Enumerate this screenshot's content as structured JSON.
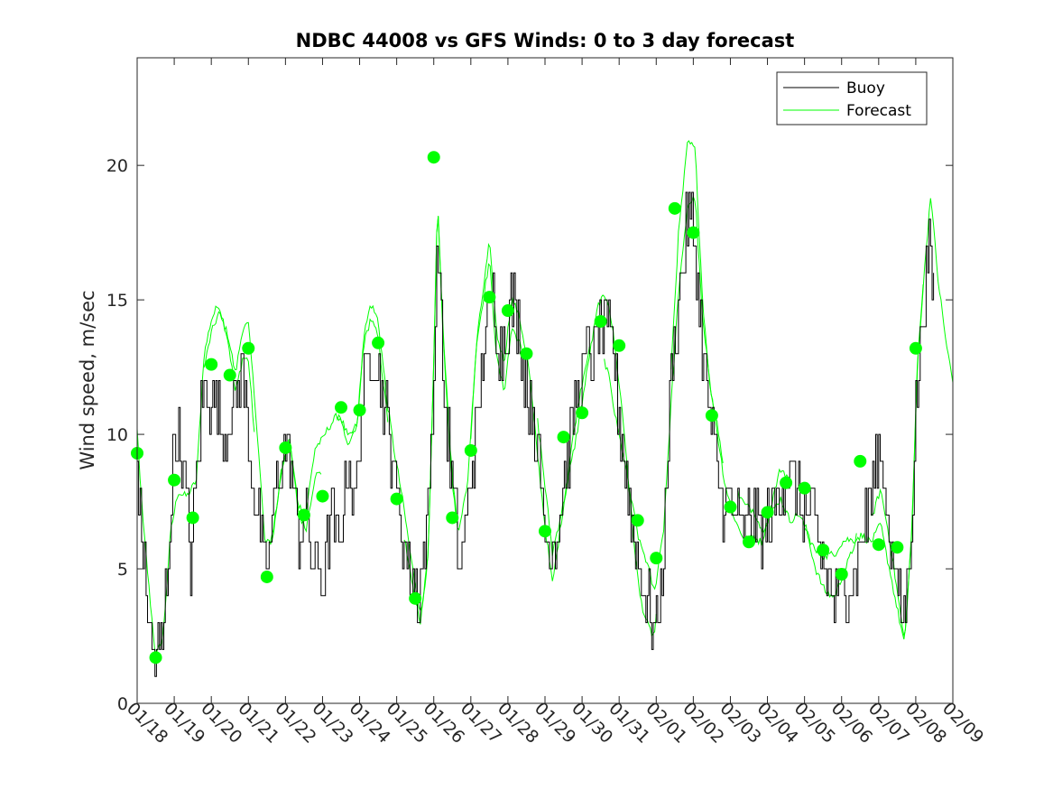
{
  "chart_data": {
    "type": "line",
    "title": "NDBC 44008 vs GFS Winds: 0 to 3 day forecast",
    "xlabel": "",
    "ylabel": "Wind speed, m/sec",
    "xlim": [
      0,
      22
    ],
    "ylim": [
      0,
      24
    ],
    "x_tick_values": [
      0,
      1,
      2,
      3,
      4,
      5,
      6,
      7,
      8,
      9,
      10,
      11,
      12,
      13,
      14,
      15,
      16,
      17,
      18,
      19,
      20,
      21,
      22
    ],
    "x_tick_labels": [
      "01/18",
      "01/19",
      "01/20",
      "01/21",
      "01/22",
      "01/23",
      "01/24",
      "01/25",
      "01/26",
      "01/27",
      "01/28",
      "01/29",
      "01/30",
      "01/31",
      "02/01",
      "02/02",
      "02/03",
      "02/04",
      "02/05",
      "02/06",
      "02/07",
      "02/08",
      "02/09"
    ],
    "y_ticks": [
      0,
      5,
      10,
      15,
      20
    ],
    "y_tick_labels": [
      "0",
      "5",
      "10",
      "15",
      "20"
    ],
    "legend": [
      "Buoy",
      "Forecast"
    ],
    "legend_position": "top-right",
    "colors": {
      "buoy": "#000000",
      "forecast": "#00ff00",
      "axis": "#262626"
    },
    "x_units": "days since 01/18",
    "buoy_anchors": [
      [
        0,
        9
      ],
      [
        0.1,
        7
      ],
      [
        0.25,
        4
      ],
      [
        0.45,
        1.3
      ],
      [
        0.7,
        2.5
      ],
      [
        0.9,
        7
      ],
      [
        1.0,
        10
      ],
      [
        1.15,
        9.5
      ],
      [
        1.3,
        8
      ],
      [
        1.45,
        5
      ],
      [
        1.6,
        9
      ],
      [
        1.8,
        12
      ],
      [
        2.1,
        11
      ],
      [
        2.3,
        10
      ],
      [
        2.55,
        11
      ],
      [
        2.8,
        12.5
      ],
      [
        3.0,
        10
      ],
      [
        3.25,
        7
      ],
      [
        3.45,
        4.5
      ],
      [
        3.65,
        7
      ],
      [
        3.9,
        9
      ],
      [
        4.1,
        9.5
      ],
      [
        4.35,
        6
      ],
      [
        4.55,
        7
      ],
      [
        4.75,
        5
      ],
      [
        5.0,
        4.5
      ],
      [
        5.2,
        7
      ],
      [
        5.45,
        6
      ],
      [
        5.7,
        9.5
      ],
      [
        5.85,
        7
      ],
      [
        6.1,
        12
      ],
      [
        6.3,
        13
      ],
      [
        6.5,
        12.5
      ],
      [
        6.7,
        11
      ],
      [
        6.9,
        9
      ],
      [
        7.1,
        7
      ],
      [
        7.35,
        5
      ],
      [
        7.6,
        4
      ],
      [
        7.8,
        6
      ],
      [
        8.0,
        12
      ],
      [
        8.1,
        17.5
      ],
      [
        8.25,
        12
      ],
      [
        8.5,
        8
      ],
      [
        8.7,
        5
      ],
      [
        8.9,
        7
      ],
      [
        9.2,
        11
      ],
      [
        9.4,
        14
      ],
      [
        9.6,
        15
      ],
      [
        9.8,
        13
      ],
      [
        10.1,
        15
      ],
      [
        10.3,
        14
      ],
      [
        10.5,
        12
      ],
      [
        10.75,
        10
      ],
      [
        10.95,
        7
      ],
      [
        11.15,
        5.5
      ],
      [
        11.4,
        7
      ],
      [
        11.7,
        10
      ],
      [
        11.9,
        12
      ],
      [
        12.1,
        12.5
      ],
      [
        12.35,
        13.5
      ],
      [
        12.6,
        14
      ],
      [
        12.85,
        13
      ],
      [
        13.05,
        10
      ],
      [
        13.3,
        7
      ],
      [
        13.55,
        5
      ],
      [
        13.8,
        3.5
      ],
      [
        14.0,
        2.5
      ],
      [
        14.2,
        6
      ],
      [
        14.4,
        12
      ],
      [
        14.6,
        15
      ],
      [
        14.85,
        18
      ],
      [
        15.0,
        17.5
      ],
      [
        15.2,
        14
      ],
      [
        15.4,
        11
      ],
      [
        15.6,
        9
      ],
      [
        15.8,
        7.5
      ],
      [
        16.1,
        7
      ],
      [
        16.35,
        6.5
      ],
      [
        16.6,
        7
      ],
      [
        16.85,
        6.5
      ],
      [
        17.1,
        7
      ],
      [
        17.35,
        8
      ],
      [
        17.6,
        8.5
      ],
      [
        17.85,
        7.5
      ],
      [
        18.1,
        7
      ],
      [
        18.35,
        6
      ],
      [
        18.55,
        5
      ],
      [
        18.8,
        4
      ],
      [
        19.1,
        4.5
      ],
      [
        19.35,
        5
      ],
      [
        19.6,
        6.5
      ],
      [
        19.85,
        8
      ],
      [
        20.05,
        9.5
      ],
      [
        20.25,
        7
      ],
      [
        20.45,
        4.5
      ],
      [
        20.65,
        3
      ],
      [
        20.85,
        6
      ],
      [
        21.0,
        11
      ],
      [
        21.2,
        15
      ],
      [
        21.35,
        17
      ],
      [
        21.5,
        15
      ]
    ],
    "forecast_anchors": [
      [
        0,
        9
      ],
      [
        0.15,
        6
      ],
      [
        0.35,
        3.5
      ],
      [
        0.5,
        1.8
      ],
      [
        0.7,
        3
      ],
      [
        0.9,
        7
      ],
      [
        1.1,
        8.5
      ],
      [
        1.35,
        8
      ],
      [
        1.6,
        8
      ],
      [
        1.8,
        12
      ],
      [
        2.0,
        13
      ],
      [
        2.2,
        13.5
      ],
      [
        2.45,
        12.5
      ],
      [
        2.65,
        11
      ],
      [
        2.85,
        12.8
      ],
      [
        3.0,
        13
      ],
      [
        3.2,
        10
      ],
      [
        3.45,
        5.5
      ],
      [
        3.65,
        6
      ],
      [
        3.9,
        9
      ],
      [
        4.1,
        10.5
      ],
      [
        4.35,
        8
      ],
      [
        4.55,
        7.5
      ],
      [
        4.8,
        9.5
      ],
      [
        5.0,
        9.5
      ],
      [
        5.25,
        10
      ],
      [
        5.45,
        10.5
      ],
      [
        5.7,
        10
      ],
      [
        5.95,
        11
      ],
      [
        6.1,
        14
      ],
      [
        6.3,
        15
      ],
      [
        6.5,
        14
      ],
      [
        6.75,
        10.5
      ],
      [
        6.95,
        8.5
      ],
      [
        7.15,
        7
      ],
      [
        7.4,
        5
      ],
      [
        7.65,
        3.5
      ],
      [
        7.85,
        6
      ],
      [
        8.0,
        13
      ],
      [
        8.1,
        19
      ],
      [
        8.25,
        14
      ],
      [
        8.45,
        9
      ],
      [
        8.65,
        6
      ],
      [
        8.9,
        7.5
      ],
      [
        9.15,
        13
      ],
      [
        9.35,
        15
      ],
      [
        9.5,
        16.5
      ],
      [
        9.7,
        13
      ],
      [
        9.9,
        12
      ],
      [
        10.1,
        14.5
      ],
      [
        10.3,
        14
      ],
      [
        10.55,
        12.5
      ],
      [
        10.75,
        10
      ],
      [
        11.0,
        7
      ],
      [
        11.2,
        5
      ],
      [
        11.4,
        7
      ],
      [
        11.7,
        10
      ],
      [
        11.95,
        12
      ],
      [
        12.2,
        13.5
      ],
      [
        12.45,
        14.5
      ],
      [
        12.7,
        14
      ],
      [
        12.9,
        12
      ],
      [
        13.1,
        10
      ],
      [
        13.35,
        7
      ],
      [
        13.55,
        5
      ],
      [
        13.8,
        4
      ],
      [
        13.95,
        3.5
      ],
      [
        14.2,
        7
      ],
      [
        14.4,
        12.5
      ],
      [
        14.6,
        17
      ],
      [
        14.85,
        20
      ],
      [
        15.05,
        19.5
      ],
      [
        15.25,
        14
      ],
      [
        15.45,
        11
      ],
      [
        15.65,
        9.5
      ],
      [
        15.85,
        8
      ],
      [
        16.15,
        7
      ],
      [
        16.4,
        6.5
      ],
      [
        16.65,
        6.5
      ],
      [
        16.85,
        6
      ],
      [
        17.1,
        7
      ],
      [
        17.35,
        8
      ],
      [
        17.6,
        7.5
      ],
      [
        17.85,
        8
      ],
      [
        18.05,
        7.5
      ],
      [
        18.3,
        6
      ],
      [
        18.55,
        5
      ],
      [
        18.8,
        4.5
      ],
      [
        19.05,
        5
      ],
      [
        19.3,
        5.5
      ],
      [
        19.55,
        6.5
      ],
      [
        19.8,
        7
      ],
      [
        20.05,
        8
      ],
      [
        20.3,
        6
      ],
      [
        20.5,
        4
      ],
      [
        20.7,
        2
      ],
      [
        20.9,
        6
      ],
      [
        21.05,
        12
      ],
      [
        21.25,
        15.5
      ],
      [
        21.4,
        18
      ],
      [
        21.6,
        15
      ],
      [
        21.8,
        13
      ],
      [
        22.0,
        11.5
      ]
    ],
    "forecast_markers": [
      [
        0.0,
        9.3
      ],
      [
        0.5,
        1.7
      ],
      [
        1.0,
        8.3
      ],
      [
        1.5,
        6.9
      ],
      [
        2.0,
        12.6
      ],
      [
        2.5,
        12.2
      ],
      [
        3.0,
        13.2
      ],
      [
        3.5,
        4.7
      ],
      [
        4.0,
        9.5
      ],
      [
        4.5,
        7.0
      ],
      [
        5.0,
        7.7
      ],
      [
        5.5,
        11.0
      ],
      [
        6.0,
        10.9
      ],
      [
        6.5,
        13.4
      ],
      [
        7.0,
        7.6
      ],
      [
        7.5,
        3.9
      ],
      [
        8.0,
        20.3
      ],
      [
        8.5,
        6.9
      ],
      [
        9.0,
        9.4
      ],
      [
        9.5,
        15.1
      ],
      [
        10.0,
        14.6
      ],
      [
        10.5,
        13.0
      ],
      [
        11.0,
        6.4
      ],
      [
        11.5,
        9.9
      ],
      [
        12.0,
        10.8
      ],
      [
        12.5,
        14.2
      ],
      [
        13.0,
        13.3
      ],
      [
        13.5,
        6.8
      ],
      [
        14.0,
        5.4
      ],
      [
        14.5,
        18.4
      ],
      [
        15.0,
        17.5
      ],
      [
        15.5,
        10.7
      ],
      [
        16.0,
        7.3
      ],
      [
        16.5,
        6.0
      ],
      [
        17.0,
        7.1
      ],
      [
        17.5,
        8.2
      ],
      [
        18.0,
        8.0
      ],
      [
        18.5,
        5.7
      ],
      [
        19.0,
        4.8
      ],
      [
        19.5,
        9.0
      ],
      [
        20.0,
        5.9
      ],
      [
        20.5,
        5.8
      ],
      [
        21.0,
        13.2
      ]
    ]
  }
}
